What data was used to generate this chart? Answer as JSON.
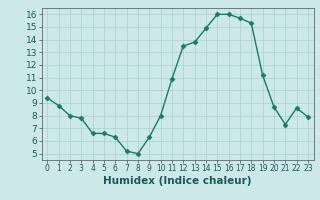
{
  "x": [
    0,
    1,
    2,
    3,
    4,
    5,
    6,
    7,
    8,
    9,
    10,
    11,
    12,
    13,
    14,
    15,
    16,
    17,
    18,
    19,
    20,
    21,
    22,
    23
  ],
  "y": [
    9.4,
    8.8,
    8.0,
    7.8,
    6.6,
    6.6,
    6.3,
    5.2,
    5.0,
    6.3,
    8.0,
    10.9,
    13.5,
    13.8,
    14.9,
    16.0,
    16.0,
    15.7,
    15.3,
    11.2,
    8.7,
    7.3,
    8.6,
    7.9
  ],
  "line_color": "#1a7a6a",
  "marker": "D",
  "marker_size": 2.5,
  "bg_color": "#cce8e8",
  "grid_color": "#aacfcf",
  "xlabel": "Humidex (Indice chaleur)",
  "xlabel_fontsize": 7.5,
  "xlim": [
    -0.5,
    23.5
  ],
  "ylim": [
    4.5,
    16.5
  ],
  "yticks": [
    5,
    6,
    7,
    8,
    9,
    10,
    11,
    12,
    13,
    14,
    15,
    16
  ],
  "xticks": [
    0,
    1,
    2,
    3,
    4,
    5,
    6,
    7,
    8,
    9,
    10,
    11,
    12,
    13,
    14,
    15,
    16,
    17,
    18,
    19,
    20,
    21,
    22,
    23
  ]
}
